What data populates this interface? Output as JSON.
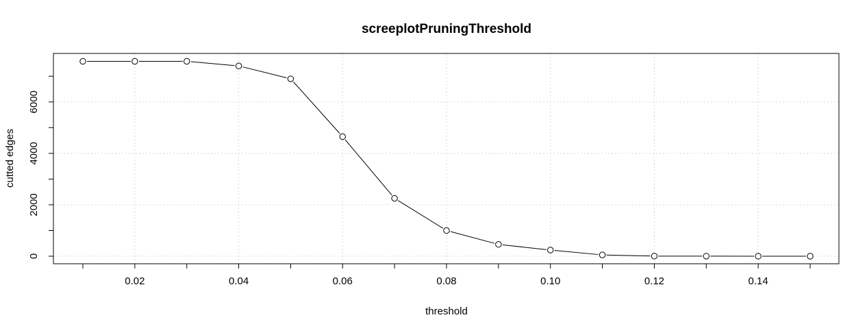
{
  "chart_data": {
    "type": "line",
    "title": "screeplotPruningThreshold",
    "xlabel": "threshold",
    "ylabel": "cutted edges",
    "x": [
      0.01,
      0.02,
      0.03,
      0.04,
      0.05,
      0.06,
      0.07,
      0.08,
      0.09,
      0.1,
      0.11,
      0.12,
      0.13,
      0.14,
      0.15
    ],
    "series": [
      {
        "values": [
          7580,
          7580,
          7580,
          7400,
          6900,
          4650,
          2250,
          1000,
          460,
          240,
          50,
          5,
          2,
          1,
          0
        ]
      }
    ],
    "x_ticks": [
      0.02,
      0.04,
      0.06,
      0.08,
      0.1,
      0.12,
      0.14
    ],
    "x_tick_labels": [
      "0.02",
      "0.04",
      "0.06",
      "0.08",
      "0.10",
      "0.12",
      "0.14"
    ],
    "y_ticks": [
      0,
      2000,
      4000,
      6000
    ],
    "y_tick_labels": [
      "0",
      "2000",
      "4000",
      "6000"
    ],
    "xlim": [
      0.01,
      0.15
    ],
    "ylim": [
      0,
      7580
    ],
    "grid": true,
    "marker": "open-circle",
    "line_color": "#000000",
    "grid_color": "#d9d9d9"
  }
}
